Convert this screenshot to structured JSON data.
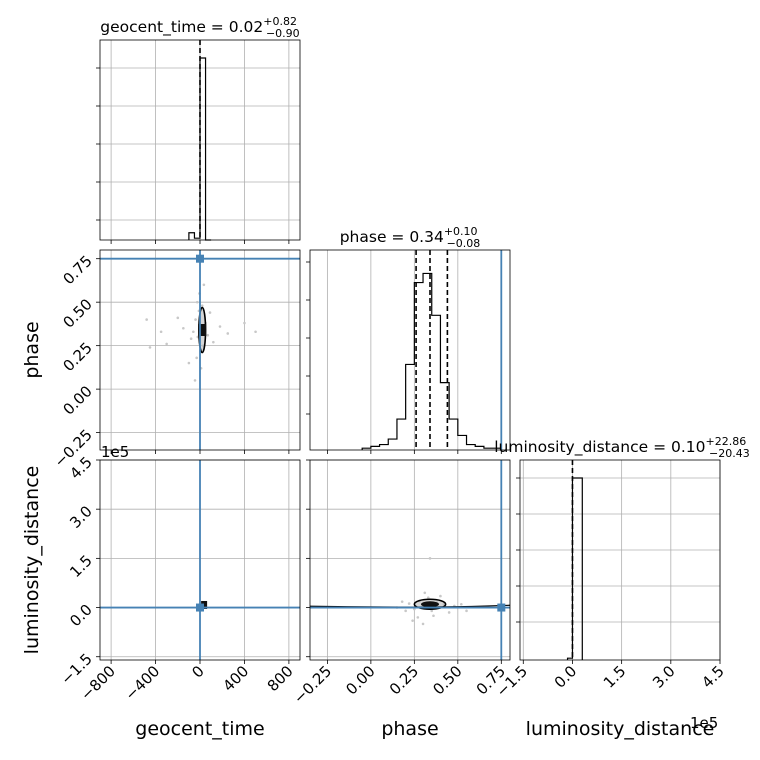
{
  "chart_data": {
    "type": "corner",
    "colors": {
      "truth": "#4682b4",
      "hist": "#000000",
      "grid": "#b0b0b0",
      "scatter": "#c8c8c8"
    },
    "params": [
      {
        "key": "geocent_time",
        "label": "geocent_time",
        "range": [
          -900,
          900
        ],
        "ticks": [
          -800,
          -400,
          0,
          400,
          800
        ],
        "tick_labels": [
          "−800",
          "−400",
          "0",
          "400",
          "800"
        ],
        "truth": 0
      },
      {
        "key": "phase",
        "label": "phase",
        "range": [
          -0.35,
          0.8
        ],
        "ticks": [
          -0.25,
          0.0,
          0.25,
          0.5,
          0.75
        ],
        "tick_labels": [
          "−0.25",
          "0.00",
          "0.25",
          "0.50",
          "0.75"
        ],
        "truth": 0.75
      },
      {
        "key": "luminosity_distance",
        "label": "luminosity_distance",
        "range": [
          -1.6,
          4.5
        ],
        "ticks": [
          -1.5,
          0.0,
          1.5,
          3.0,
          4.5
        ],
        "tick_labels": [
          "−1.5",
          "0.0",
          "1.5",
          "3.0",
          "4.5"
        ],
        "truth": 0.0,
        "offset_label": "1e5"
      }
    ],
    "titles": [
      {
        "prefix": "geocent_time = 0.02",
        "sup": "+0.82",
        "sub": "−0.90"
      },
      {
        "prefix": "phase = 0.34",
        "sup": "+0.10",
        "sub": "−0.08"
      },
      {
        "prefix": "luminosity_distance = 0.10",
        "sup": "+22.86",
        "sub": "−20.43"
      }
    ],
    "hist_geocent_time": {
      "edges": [
        -100,
        -50,
        0,
        50,
        100
      ],
      "counts": [
        0.04,
        0.01,
        1.0,
        0.0
      ],
      "quantile_lines": [
        0.02
      ]
    },
    "hist_phase": {
      "edges": [
        -0.05,
        0.0,
        0.05,
        0.1,
        0.15,
        0.2,
        0.25,
        0.3,
        0.35,
        0.4,
        0.45,
        0.5,
        0.55,
        0.6,
        0.65,
        0.7,
        0.75
      ],
      "counts": [
        0.01,
        0.02,
        0.03,
        0.06,
        0.17,
        0.47,
        0.92,
        0.97,
        0.74,
        0.37,
        0.17,
        0.08,
        0.03,
        0.02,
        0.01,
        0.01
      ],
      "quantile_lines": [
        0.26,
        0.34,
        0.44
      ]
    },
    "hist_luminosity_distance": {
      "edges": [
        -0.15,
        0.0,
        0.3
      ],
      "counts": [
        0.01,
        1.0
      ],
      "quantile_lines": [
        0.0
      ]
    },
    "scatter_phase_geocent": {
      "points": [
        [
          -20,
          0.3
        ],
        [
          15,
          0.36
        ],
        [
          -40,
          0.4
        ],
        [
          30,
          0.25
        ],
        [
          -60,
          0.33
        ],
        [
          50,
          0.38
        ],
        [
          -10,
          0.45
        ],
        [
          5,
          0.22
        ],
        [
          -80,
          0.29
        ],
        [
          70,
          0.31
        ],
        [
          -30,
          0.18
        ],
        [
          20,
          0.48
        ],
        [
          -150,
          0.35
        ],
        [
          120,
          0.27
        ],
        [
          -5,
          0.55
        ],
        [
          10,
          0.12
        ],
        [
          -200,
          0.41
        ],
        [
          180,
          0.36
        ],
        [
          -300,
          0.26
        ],
        [
          250,
          0.32
        ],
        [
          -480,
          0.4
        ],
        [
          -450,
          0.24
        ],
        [
          -350,
          0.33
        ],
        [
          400,
          0.38
        ],
        [
          500,
          0.33
        ],
        [
          -100,
          0.15
        ],
        [
          90,
          0.44
        ],
        [
          -45,
          0.05
        ],
        [
          35,
          0.6
        ],
        [
          -25,
          0.5
        ]
      ]
    },
    "scatter_dist_phase": {
      "points": [
        [
          0.28,
          0.2
        ],
        [
          0.35,
          -0.1
        ],
        [
          0.3,
          0.05
        ],
        [
          0.38,
          0.15
        ],
        [
          0.25,
          -0.05
        ],
        [
          0.42,
          0.1
        ],
        [
          0.22,
          0.12
        ],
        [
          0.33,
          0.3
        ],
        [
          0.45,
          -0.15
        ],
        [
          0.2,
          -0.1
        ],
        [
          0.4,
          0.35
        ],
        [
          0.27,
          -0.3
        ],
        [
          0.48,
          0.05
        ],
        [
          0.18,
          0.18
        ],
        [
          0.36,
          -0.25
        ],
        [
          0.31,
          0.45
        ],
        [
          0.24,
          -0.4
        ],
        [
          0.52,
          0.1
        ],
        [
          0.15,
          0.0
        ],
        [
          0.55,
          -0.1
        ],
        [
          0.34,
          1.5
        ],
        [
          0.3,
          -0.5
        ]
      ]
    },
    "contour_phase_geocent": {
      "center": [
        20,
        0.34
      ],
      "rx": 30,
      "ry": 0.13
    },
    "contour_dist_phase": {
      "center": [
        0.34,
        0.1
      ],
      "rx": 0.09,
      "ry": 0.12
    }
  }
}
